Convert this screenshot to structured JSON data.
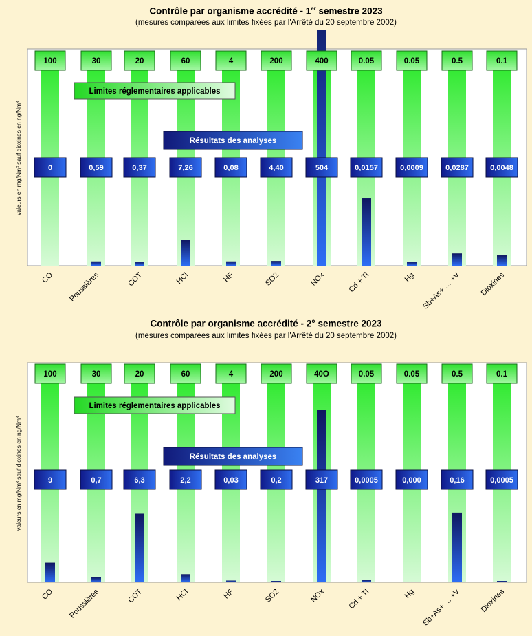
{
  "charts": [
    {
      "title_main": "Contrôle par organisme accrédité - 1",
      "title_sup": "er",
      "title_end": " semestre 2023",
      "subtitle": "(mesures comparées aux limites fixées par l'Arrêté du 20 septembre 2002)",
      "limits_label": "Limites réglementaires applicables",
      "results_label": "Résultats des analyses",
      "ylabel": "valeurs en mg/Nm³ sauf dioxines en ng/Nm³"
    },
    {
      "title_main": "Contrôle par organisme accrédité - 2° semestre 2023",
      "title_sup": "",
      "title_end": "",
      "subtitle": "(mesures comparées aux limites fixées par l'Arrêté du 20 septembre 2002)",
      "limits_label": "Limites réglementaires applicables",
      "results_label": "Résultats des analyses",
      "ylabel": "valeurs en mg/Nm³ sauf dioxines en ng/Nm³"
    }
  ],
  "chart_data": [
    {
      "type": "bar",
      "categories": [
        "CO",
        "Poussières",
        "COT",
        "HCl",
        "HF",
        "SO2",
        "NOx",
        "Cd + Tl",
        "Hg",
        "Sb+As+ … +V",
        "Dioxines"
      ],
      "limits": [
        "100",
        "30",
        "20",
        "60",
        "4",
        "200",
        "400",
        "0.05",
        "0.05",
        "0.5",
        "0.1"
      ],
      "results": [
        "0",
        "0,59",
        "0,37",
        "7,26",
        "0,08",
        "4,40",
        "504",
        "0,0157",
        "0,0009",
        "0,0287",
        "0,0048"
      ],
      "fraction_of_limit": [
        0,
        0.02,
        0.018,
        0.121,
        0.02,
        0.022,
        1.26,
        0.314,
        0.018,
        0.057,
        0.048
      ],
      "colors": {
        "limit": "#33ee33",
        "result": "#1a2a9e"
      }
    },
    {
      "type": "bar",
      "categories": [
        "CO",
        "Poussières",
        "COT",
        "HCl",
        "HF",
        "SO2",
        "NOx",
        "Cd + Tl",
        "Hg",
        "Sb+As+ … +V",
        "Dioxines"
      ],
      "limits": [
        "100",
        "30",
        "20",
        "60",
        "4",
        "200",
        "40O",
        "0.05",
        "0.05",
        "0.5",
        "0.1"
      ],
      "results": [
        "9",
        "0,7",
        "6,3",
        "2,2",
        "0,03",
        "0,2",
        "317",
        "0,0005",
        "0,000",
        "0,16",
        "0,0005"
      ],
      "fraction_of_limit": [
        0.09,
        0.023,
        0.315,
        0.037,
        0.008,
        0.001,
        0.793,
        0.01,
        0.0,
        0.32,
        0.005
      ],
      "colors": {
        "limit": "#33ee33",
        "result": "#1a2a9e"
      }
    }
  ]
}
